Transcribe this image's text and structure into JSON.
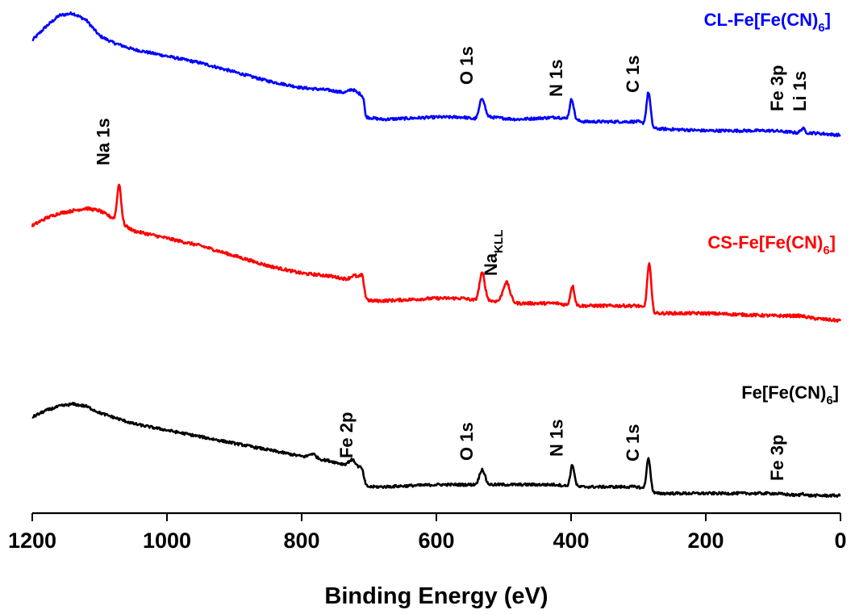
{
  "chart_data": {
    "type": "line",
    "xlabel": "Binding Energy (eV)",
    "ylabel": "",
    "xlim": [
      1200,
      0
    ],
    "x_reversed": true,
    "xticks": [
      1200,
      1000,
      800,
      600,
      400,
      200,
      0
    ],
    "xtick_labels": [
      "1200",
      "1000",
      "800",
      "600",
      "400",
      "200",
      "0"
    ],
    "grid": false,
    "y_axis_shown": false,
    "series": [
      {
        "name": "CL-Fe[Fe(CN)6]",
        "label_main": "CL-Fe[Fe(CN)",
        "label_sub": "6",
        "label_end": "]",
        "color": "#0000ff",
        "baseline": [
          [
            1200,
            0.5
          ],
          [
            1180,
            0.56
          ],
          [
            1160,
            0.61
          ],
          [
            1140,
            0.62
          ],
          [
            1120,
            0.59
          ],
          [
            1100,
            0.52
          ],
          [
            1080,
            0.49
          ],
          [
            1050,
            0.46
          ],
          [
            1000,
            0.43
          ],
          [
            950,
            0.4
          ],
          [
            900,
            0.36
          ],
          [
            850,
            0.32
          ],
          [
            800,
            0.29
          ],
          [
            760,
            0.28
          ],
          [
            720,
            0.26
          ],
          [
            708,
            0.23
          ],
          [
            705,
            0.16
          ],
          [
            680,
            0.15
          ],
          [
            600,
            0.16
          ],
          [
            560,
            0.16
          ],
          [
            540,
            0.15
          ],
          [
            520,
            0.16
          ],
          [
            480,
            0.15
          ],
          [
            420,
            0.16
          ],
          [
            400,
            0.15
          ],
          [
            380,
            0.14
          ],
          [
            350,
            0.14
          ],
          [
            300,
            0.14
          ],
          [
            285,
            0.12
          ],
          [
            280,
            0.11
          ],
          [
            200,
            0.1
          ],
          [
            100,
            0.1
          ],
          [
            60,
            0.09
          ],
          [
            40,
            0.09
          ],
          [
            0,
            0.08
          ]
        ],
        "peaks": [
          {
            "x": 532,
            "height": 0.09,
            "width": 4
          },
          {
            "x": 399,
            "height": 0.09,
            "width": 3
          },
          {
            "x": 285,
            "height": 0.15,
            "width": 3
          },
          {
            "x": 56,
            "height": 0.02,
            "width": 3
          },
          {
            "x": 725,
            "height": 0.02,
            "width": 5
          },
          {
            "x": 712,
            "height": 0.02,
            "width": 4
          }
        ]
      },
      {
        "name": "CS-Fe[Fe(CN)6]",
        "label_main": "CS-Fe[Fe(CN)",
        "label_sub": "6",
        "label_end": "]",
        "color": "#ff0000",
        "baseline": [
          [
            1200,
            0.42
          ],
          [
            1180,
            0.45
          ],
          [
            1160,
            0.47
          ],
          [
            1140,
            0.48
          ],
          [
            1120,
            0.49
          ],
          [
            1100,
            0.48
          ],
          [
            1080,
            0.45
          ],
          [
            1050,
            0.4
          ],
          [
            1000,
            0.37
          ],
          [
            950,
            0.34
          ],
          [
            900,
            0.3
          ],
          [
            850,
            0.26
          ],
          [
            800,
            0.23
          ],
          [
            760,
            0.22
          ],
          [
            720,
            0.2
          ],
          [
            710,
            0.18
          ],
          [
            705,
            0.12
          ],
          [
            680,
            0.12
          ],
          [
            600,
            0.13
          ],
          [
            560,
            0.13
          ],
          [
            540,
            0.12
          ],
          [
            520,
            0.12
          ],
          [
            480,
            0.11
          ],
          [
            420,
            0.11
          ],
          [
            400,
            0.1
          ],
          [
            380,
            0.1
          ],
          [
            350,
            0.1
          ],
          [
            300,
            0.1
          ],
          [
            285,
            0.08
          ],
          [
            280,
            0.07
          ],
          [
            200,
            0.07
          ],
          [
            100,
            0.06
          ],
          [
            60,
            0.06
          ],
          [
            40,
            0.05
          ],
          [
            0,
            0.04
          ]
        ],
        "peaks": [
          {
            "x": 1071,
            "height": 0.15,
            "width": 3
          },
          {
            "x": 532,
            "height": 0.11,
            "width": 4
          },
          {
            "x": 496,
            "height": 0.08,
            "width": 5
          },
          {
            "x": 398,
            "height": 0.08,
            "width": 3
          },
          {
            "x": 284,
            "height": 0.19,
            "width": 3
          },
          {
            "x": 722,
            "height": 0.02,
            "width": 5
          },
          {
            "x": 710,
            "height": 0.04,
            "width": 4
          }
        ]
      },
      {
        "name": "Fe[Fe(CN)6]",
        "label_main": "Fe[Fe(CN)",
        "label_sub": "6",
        "label_end": "]",
        "color": "#000000",
        "baseline": [
          [
            1200,
            0.4
          ],
          [
            1180,
            0.43
          ],
          [
            1160,
            0.45
          ],
          [
            1140,
            0.46
          ],
          [
            1120,
            0.45
          ],
          [
            1100,
            0.42
          ],
          [
            1080,
            0.4
          ],
          [
            1050,
            0.37
          ],
          [
            1000,
            0.34
          ],
          [
            950,
            0.31
          ],
          [
            900,
            0.28
          ],
          [
            850,
            0.25
          ],
          [
            800,
            0.22
          ],
          [
            760,
            0.2
          ],
          [
            720,
            0.17
          ],
          [
            710,
            0.13
          ],
          [
            705,
            0.08
          ],
          [
            680,
            0.08
          ],
          [
            600,
            0.09
          ],
          [
            560,
            0.09
          ],
          [
            540,
            0.09
          ],
          [
            520,
            0.09
          ],
          [
            480,
            0.09
          ],
          [
            420,
            0.09
          ],
          [
            400,
            0.08
          ],
          [
            380,
            0.08
          ],
          [
            350,
            0.08
          ],
          [
            300,
            0.08
          ],
          [
            285,
            0.06
          ],
          [
            280,
            0.05
          ],
          [
            200,
            0.05
          ],
          [
            100,
            0.05
          ],
          [
            60,
            0.04
          ],
          [
            40,
            0.04
          ],
          [
            0,
            0.04
          ]
        ],
        "peaks": [
          {
            "x": 532,
            "height": 0.07,
            "width": 4
          },
          {
            "x": 398,
            "height": 0.1,
            "width": 3
          },
          {
            "x": 285,
            "height": 0.15,
            "width": 3
          },
          {
            "x": 725,
            "height": 0.03,
            "width": 5
          },
          {
            "x": 711,
            "height": 0.03,
            "width": 4
          },
          {
            "x": 784,
            "height": 0.02,
            "width": 5
          },
          {
            "x": 56,
            "height": 0.01,
            "width": 3
          }
        ]
      }
    ],
    "annotations": [
      {
        "text": "O 1s",
        "series": "CL-Fe[Fe(CN)6]",
        "x": 532
      },
      {
        "text": "N 1s",
        "series": "CL-Fe[Fe(CN)6]",
        "x": 399
      },
      {
        "text": "C 1s",
        "series": "CL-Fe[Fe(CN)6]",
        "x": 285
      },
      {
        "text": "Fe 3p",
        "series": "CL-Fe[Fe(CN)6]",
        "x": 56
      },
      {
        "text": "Li 1s",
        "series": "CL-Fe[Fe(CN)6]",
        "x": 56
      },
      {
        "text": "Na 1s",
        "series": "CS-Fe[Fe(CN)6]",
        "x": 1071
      },
      {
        "text": "Na",
        "sub": "KLL",
        "series": "CS-Fe[Fe(CN)6]",
        "x": 496
      },
      {
        "text": "Fe 2p",
        "series": "Fe[Fe(CN)6]",
        "x": 710
      },
      {
        "text": "O 1s",
        "series": "Fe[Fe(CN)6]",
        "x": 532
      },
      {
        "text": "N 1s",
        "series": "Fe[Fe(CN)6]",
        "x": 398
      },
      {
        "text": "C 1s",
        "series": "Fe[Fe(CN)6]",
        "x": 285
      },
      {
        "text": "Fe 3p",
        "series": "Fe[Fe(CN)6]",
        "x": 56
      }
    ]
  }
}
